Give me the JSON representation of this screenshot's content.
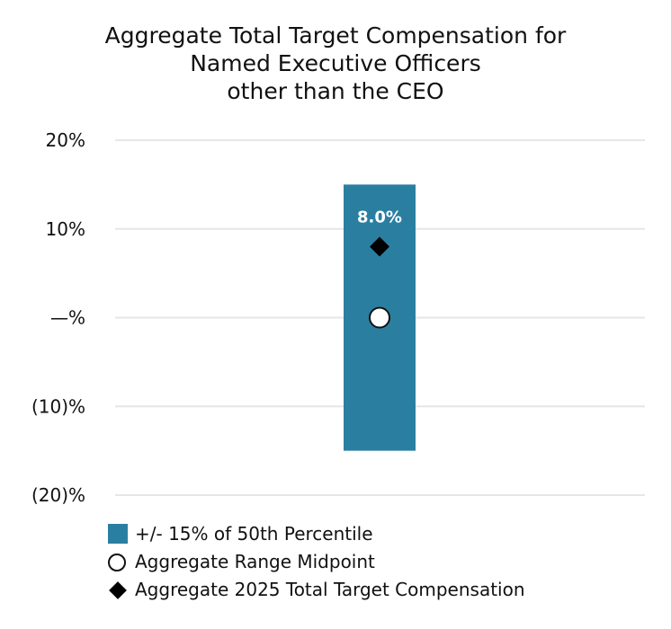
{
  "chart_data": {
    "type": "bar",
    "title_lines": [
      "Aggregate Total Target Compensation for",
      "Named Executive Officers",
      "other than the CEO"
    ],
    "ylim": [
      -20,
      20
    ],
    "y_ticks": [
      {
        "value": 20,
        "label": "20%"
      },
      {
        "value": 10,
        "label": "10%"
      },
      {
        "value": 0,
        "label": "—%"
      },
      {
        "value": -10,
        "label": "(10)%"
      },
      {
        "value": -20,
        "label": "(20)%"
      }
    ],
    "grid": true,
    "range_bar": {
      "name": "+/- 15% of 50th Percentile",
      "low": -15,
      "high": 15,
      "color": "#2a7fa1"
    },
    "midpoint": {
      "name": "Aggregate Range Midpoint",
      "value": 0
    },
    "actual": {
      "name": "Aggregate 2025 Total Target Compensation",
      "value": 8.0,
      "label": "8.0%"
    },
    "colors": {
      "bar": "#2a7fa1",
      "grid": "#e6e6e6",
      "marker": "#000000",
      "data_label": "#ffffff"
    },
    "legend_position": "bottom-left"
  }
}
